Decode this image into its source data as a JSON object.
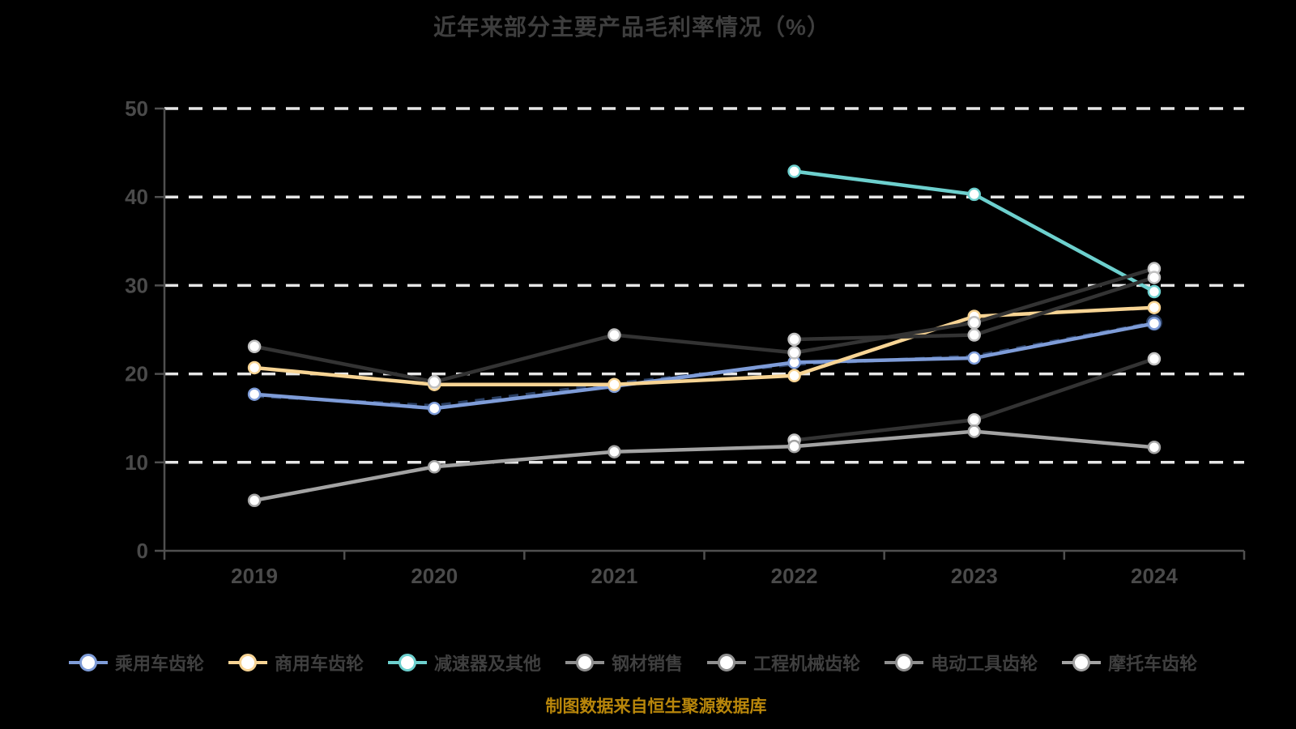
{
  "title": {
    "text": "近年来部分主要产品毛利率情况（%）"
  },
  "footer": {
    "text": "制图数据来自恒生聚源数据库"
  },
  "colors": {
    "background": "#000000",
    "title_text": "#3e3e3e",
    "axis": "#4f4f4f",
    "axis_label": "#4a4a4a",
    "gridline": "#e6e6e6",
    "legend_text": "#3f3f3f",
    "footer_text": "#b8860b",
    "marker_fill": "#ffffff"
  },
  "chart_data": {
    "type": "line",
    "title": "近年来部分主要产品毛利率情况（%）",
    "x_categories": [
      "2019",
      "2020",
      "2021",
      "2022",
      "2023",
      "2024"
    ],
    "xlabel": "",
    "ylabel": "",
    "ylim": [
      0,
      50
    ],
    "yticks": [
      0,
      10,
      20,
      30,
      40,
      50
    ],
    "grid": "horizontal-dashed",
    "legend_position": "bottom",
    "series": [
      {
        "name": "乘用车齿轮",
        "color": "#7e9cd8",
        "legend_color": "#7e9cd8",
        "marker_stroke": "#7e9cd8",
        "values": [
          17.7,
          16.1,
          18.6,
          21.3,
          21.8,
          25.7
        ]
      },
      {
        "name": "商用车齿轮",
        "color": "#f7d494",
        "legend_color": "#f7d494",
        "marker_stroke": "#f7d494",
        "values": [
          20.7,
          18.8,
          18.8,
          19.8,
          26.5,
          27.5
        ]
      },
      {
        "name": "减速器及其他",
        "color": "#6dd0ce",
        "legend_color": "#6dd0ce",
        "marker_stroke": "#6dd0ce",
        "values": [
          null,
          null,
          null,
          42.9,
          40.3,
          29.3
        ]
      },
      {
        "name": "钢材销售",
        "color": "#333333",
        "legend_color": "#8f8f8f",
        "marker_stroke": "#c0c0c0",
        "values": [
          23.1,
          19.1,
          24.4,
          22.4,
          25.8,
          31.9
        ]
      },
      {
        "name": "工程机械齿轮",
        "color": "#333333",
        "legend_color": "#8f8f8f",
        "marker_stroke": "#c0c0c0",
        "values": [
          null,
          null,
          null,
          23.9,
          24.4,
          30.9
        ]
      },
      {
        "name": "电动工具齿轮",
        "color": "#333333",
        "legend_color": "#8f8f8f",
        "marker_stroke": "#c0c0c0",
        "values": [
          null,
          null,
          null,
          12.5,
          14.8,
          21.7
        ]
      },
      {
        "name": "摩托车齿轮",
        "color": "#a3a3a3",
        "legend_color": "#a3a3a3",
        "marker_stroke": "#a3a3a3",
        "values": [
          5.7,
          9.5,
          11.2,
          11.8,
          13.5,
          11.7
        ]
      }
    ],
    "overlay_dashed_companion": {
      "note": "dark navy dashed line that tracks the 乘用车齿轮 line, visible as short dashes around its markers",
      "color": "#2a3f63",
      "dash": "12 9",
      "values": [
        17.5,
        16.4,
        18.9,
        21.1,
        22.0,
        25.8
      ]
    }
  }
}
